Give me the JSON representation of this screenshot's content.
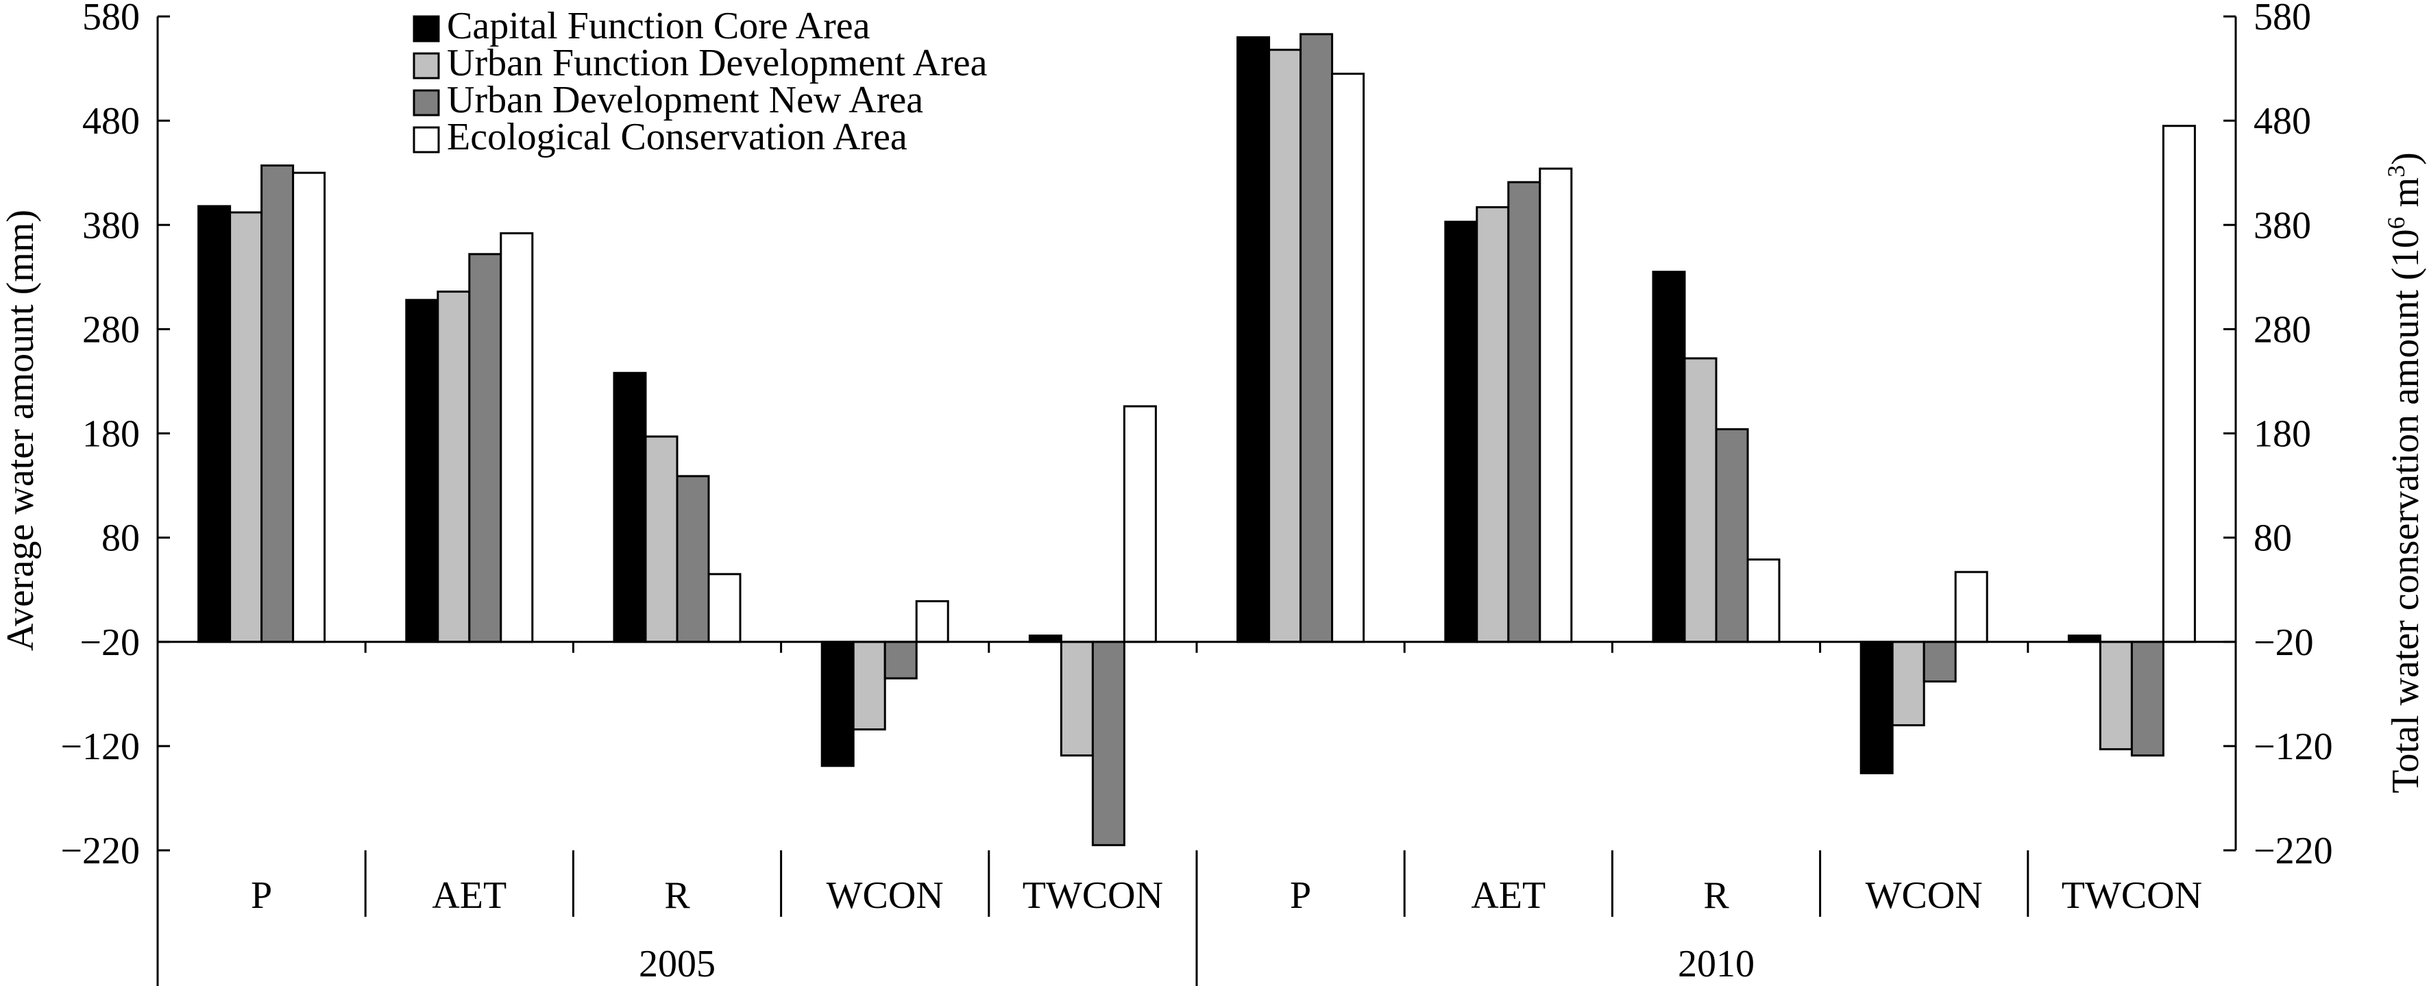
{
  "chart_data": {
    "type": "bar",
    "groups": [
      {
        "label": "2005",
        "categories": [
          "P",
          "AET",
          "R",
          "WCON",
          "TWCON"
        ]
      },
      {
        "label": "2010",
        "categories": [
          "P",
          "AET",
          "R",
          "WCON",
          "TWCON"
        ]
      }
    ],
    "series": [
      {
        "name": "Capital Function Core Area",
        "color": "#000000",
        "values": [
          398,
          308,
          238,
          -139,
          -14,
          560,
          383,
          335,
          -146,
          -14
        ]
      },
      {
        "name": "Urban Function Development Area",
        "color": "#c0c0c0",
        "values": [
          392,
          316,
          177,
          -104,
          -129,
          548,
          397,
          252,
          -100,
          -123
        ]
      },
      {
        "name": "Urban Development New Area",
        "color": "#808080",
        "values": [
          437,
          352,
          139,
          -55,
          -215,
          563,
          421,
          184,
          -58,
          -129
        ]
      },
      {
        "name": "Ecological Conservation Area",
        "color": "#ffffff",
        "values": [
          430,
          372,
          45,
          19,
          206,
          525,
          434,
          59,
          47,
          475
        ]
      }
    ],
    "ylabel": "Average water amount (mm)",
    "y2label_main": "Total water conservation amount (10",
    "y2label_sup": "6",
    "y2label_unit": " m",
    "y2label_unit_sup": "3",
    "y2label_end": ")",
    "ylim": [
      -220,
      580
    ],
    "yticks": [
      580,
      480,
      380,
      280,
      180,
      80,
      -20,
      -120,
      -220
    ],
    "ytick_labels": [
      "580",
      "480",
      "380",
      "280",
      "180",
      "80",
      "−20",
      "−120",
      "−220"
    ],
    "y2ticks": [
      580,
      480,
      380,
      280,
      180,
      80,
      -20,
      -120,
      -220
    ],
    "y2tick_labels": [
      "580",
      "480",
      "380",
      "280",
      "180",
      "80",
      "−20",
      "−120",
      "−220"
    ],
    "baseline": -20,
    "grid": false,
    "legend_position": "top-left"
  }
}
